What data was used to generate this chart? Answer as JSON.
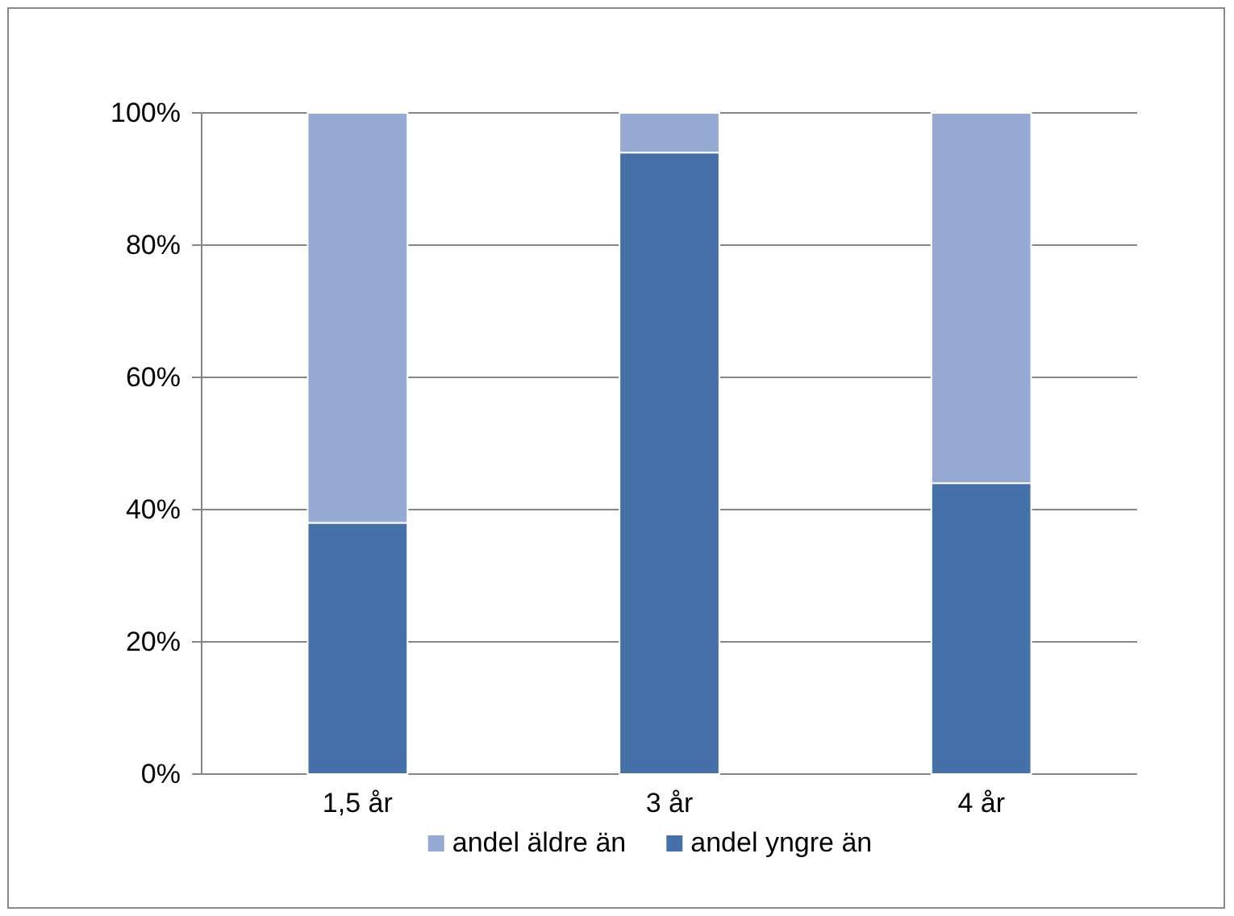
{
  "chart_data": {
    "type": "bar",
    "stacked": true,
    "categories": [
      "1,5 år",
      "3 år",
      "4 år"
    ],
    "series": [
      {
        "name": "andel yngre än",
        "color": "#4571a8",
        "values": [
          38,
          94,
          44
        ]
      },
      {
        "name": "andel äldre än",
        "color": "#95a9d2",
        "values": [
          62,
          6,
          56
        ]
      }
    ],
    "ylim": [
      0,
      100
    ],
    "yticks": [
      {
        "value": 0,
        "label": "0%"
      },
      {
        "value": 20,
        "label": "20%"
      },
      {
        "value": 40,
        "label": "40%"
      },
      {
        "value": 60,
        "label": "60%"
      },
      {
        "value": 80,
        "label": "80%"
      },
      {
        "value": 100,
        "label": "100%"
      }
    ],
    "grid": "y",
    "legend": "bottom"
  }
}
